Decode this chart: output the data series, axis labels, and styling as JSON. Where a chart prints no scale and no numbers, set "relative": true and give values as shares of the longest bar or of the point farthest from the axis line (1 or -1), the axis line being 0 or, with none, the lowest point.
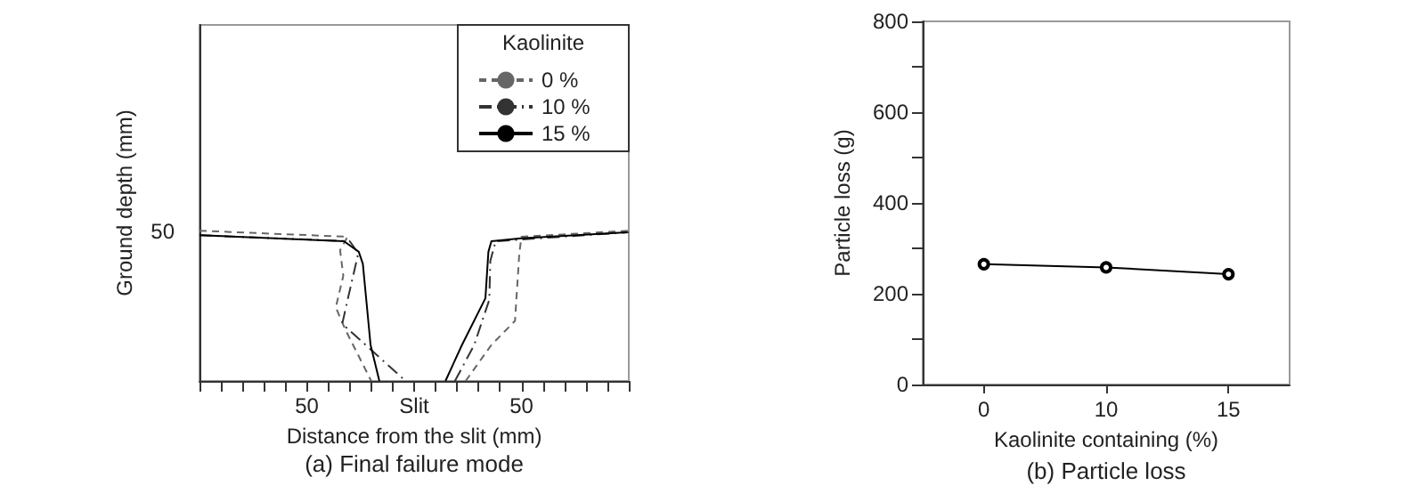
{
  "chart_data": [
    {
      "type": "line",
      "relative": true,
      "xlabel": "Distance from the slit (mm)",
      "ylabel": "Ground depth (mm)",
      "legend_title": "Kaolinite",
      "legend": "top right",
      "grid": false,
      "marker": "none",
      "annotations": [
        "(a) Final failure mode",
        "50"
      ],
      "xlim": [
        -100,
        100
      ],
      "xticks": [
        {
          "value": -100,
          "label": null
        },
        {
          "value": -90,
          "label": null
        },
        {
          "value": -80,
          "label": null
        },
        {
          "value": -70,
          "label": null
        },
        {
          "value": -60,
          "label": null
        },
        {
          "value": -50,
          "label": "50"
        },
        {
          "value": -40,
          "label": null
        },
        {
          "value": -30,
          "label": null
        },
        {
          "value": -20,
          "label": null
        },
        {
          "value": -10,
          "label": null
        },
        {
          "value": 0,
          "label": "Slit"
        },
        {
          "value": 10,
          "label": null
        },
        {
          "value": 20,
          "label": null
        },
        {
          "value": 30,
          "label": null
        },
        {
          "value": 40,
          "label": null
        },
        {
          "value": 50,
          "label": "50"
        },
        {
          "value": 60,
          "label": null
        },
        {
          "value": 70,
          "label": null
        },
        {
          "value": 80,
          "label": null
        },
        {
          "value": 90,
          "label": null
        },
        {
          "value": 100,
          "label": null
        }
      ],
      "series": [
        {
          "name": "0 %",
          "color": "#666666",
          "line_style": "dashed",
          "x": [
            -100,
            -31,
            -34.5,
            -33,
            -36.5,
            -32,
            -20,
            null,
            24,
            36,
            47,
            49,
            50,
            100
          ],
          "values": [
            1,
            0.96,
            0.87,
            0.7,
            0.49,
            0.34,
            0,
            null,
            0,
            0.24,
            0.4,
            0.85,
            0.96,
            1
          ]
        },
        {
          "name": "10 %",
          "color": "#333333",
          "line_style": "dashdot",
          "x": [
            -100,
            -30,
            -26,
            -31,
            -33.5,
            -4,
            null,
            19,
            28,
            35,
            35.5,
            38,
            100
          ],
          "values": [
            0.97,
            0.93,
            0.85,
            0.54,
            0.38,
            0,
            null,
            0,
            0.24,
            0.54,
            0.8,
            0.93,
            0.99
          ]
        },
        {
          "name": "15 %",
          "color": "#000000",
          "line_style": "solid",
          "x": [
            -100,
            -32.7,
            -25.8,
            -23.9,
            -20.3,
            -16.2,
            null,
            14.6,
            22.3,
            33.2,
            34.6,
            36,
            49.7,
            99.2
          ],
          "values": [
            0.97,
            0.93,
            0.86,
            0.78,
            0.24,
            0,
            null,
            0,
            0.24,
            0.55,
            0.86,
            0.93,
            0.95,
            0.99
          ]
        }
      ]
    },
    {
      "type": "line",
      "xlabel": "Kaolinite containing (%)",
      "ylabel": "Particle loss (g)",
      "legend": false,
      "grid": false,
      "marker": "circle",
      "annotations": [
        "(b) Particle loss"
      ],
      "categories": [
        "0",
        "10",
        "15"
      ],
      "ylim": [
        0,
        800
      ],
      "yticks": [
        0,
        {
          "value": 100,
          "label": null
        },
        200,
        {
          "value": 300,
          "label": null
        },
        400,
        {
          "value": 500,
          "label": null
        },
        600,
        {
          "value": 700,
          "label": null
        },
        800
      ],
      "series": [
        {
          "color": "#000000",
          "line_style": "solid",
          "values": [
            265,
            258,
            243
          ]
        }
      ]
    }
  ]
}
